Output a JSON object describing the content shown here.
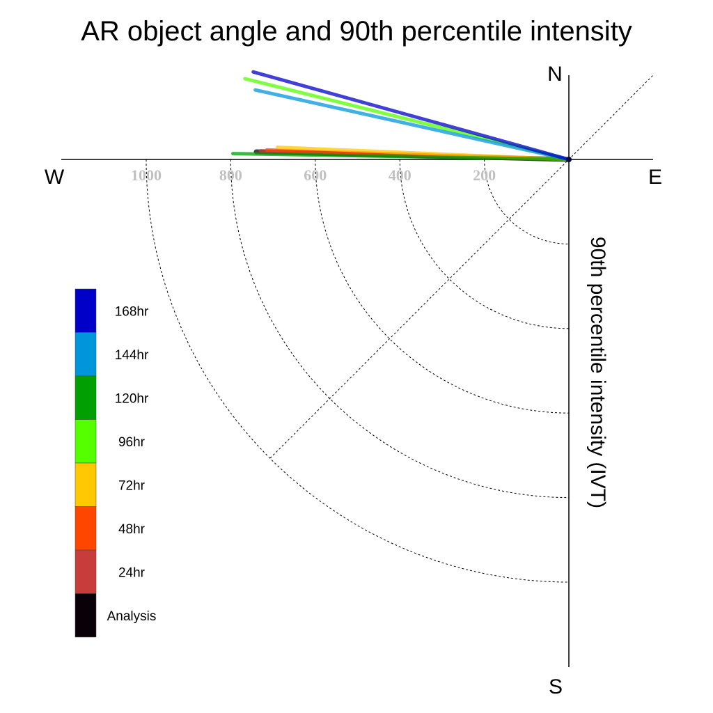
{
  "chart_data": {
    "type": "polar-line",
    "title": "AR object angle and 90th percentile intensity",
    "ylabel": "90th percentile intensity (IVT)",
    "compass": {
      "north": "N",
      "south": "S",
      "east": "E",
      "west": "W"
    },
    "radial_ticks": [
      "1000",
      "800",
      "600",
      "400",
      "200"
    ],
    "radial_tick_values": [
      1000,
      800,
      600,
      400,
      200
    ],
    "grid_radii": [
      200,
      400,
      600,
      800,
      1000
    ],
    "rmax": 1200,
    "grid": true,
    "legend_position": "lower-left",
    "series": [
      {
        "name": "168hr",
        "color": "#0000c8",
        "intensity": 775,
        "angle_deg": 164.5
      },
      {
        "name": "144hr",
        "color": "#0096dc",
        "intensity": 760,
        "angle_deg": 167.5
      },
      {
        "name": "120hr",
        "color": "#00a000",
        "intensity": 795,
        "angle_deg": 179.0
      },
      {
        "name": "96hr",
        "color": "#55ff00",
        "intensity": 790,
        "angle_deg": 166.0
      },
      {
        "name": "72hr",
        "color": "#ffc800",
        "intensity": 690,
        "angle_deg": 177.6
      },
      {
        "name": "48hr",
        "color": "#ff4600",
        "intensity": 715,
        "angle_deg": 178.2
      },
      {
        "name": "24hr",
        "color": "#c83c3c",
        "intensity": 730,
        "angle_deg": 178.4
      },
      {
        "name": "Analysis",
        "color": "#0a0008",
        "intensity": 740,
        "angle_deg": 178.6
      }
    ]
  }
}
